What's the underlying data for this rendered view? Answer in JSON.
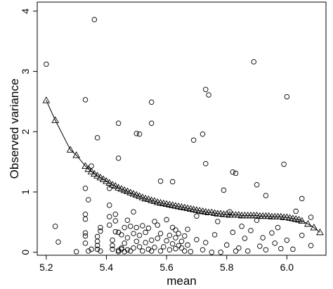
{
  "chart_data": {
    "type": "scatter",
    "title": "",
    "xlabel": "mean",
    "ylabel": "Observed variance",
    "xlim": [
      5.17,
      6.13
    ],
    "ylim": [
      -0.05,
      4.15
    ],
    "xticks": [
      5.2,
      5.4,
      5.6,
      5.8,
      6.0
    ],
    "xtick_labels": [
      "5.2",
      "5.4",
      "5.6",
      "5.8",
      "6.0"
    ],
    "yticks": [
      0,
      1,
      2,
      3,
      4
    ],
    "ytick_labels": [
      "0",
      "1",
      "2",
      "3",
      "4"
    ],
    "grid": false,
    "legend": "none",
    "series": [
      {
        "marker": "circle",
        "x": [
          5.2,
          5.23,
          5.24,
          5.3,
          5.33,
          5.33,
          5.34,
          5.35,
          5.36,
          5.37,
          5.38,
          5.33,
          5.33,
          5.33,
          5.33,
          5.34,
          5.37,
          5.37,
          5.37,
          5.38,
          5.38,
          5.41,
          5.41,
          5.41,
          5.42,
          5.42,
          5.42,
          5.43,
          5.43,
          5.43,
          5.44,
          5.44,
          5.44,
          5.45,
          5.45,
          5.45,
          5.46,
          5.46,
          5.46,
          5.47,
          5.47,
          5.47,
          5.48,
          5.48,
          5.49,
          5.49,
          5.5,
          5.5,
          5.51,
          5.51,
          5.52,
          5.52,
          5.53,
          5.53,
          5.54,
          5.54,
          5.55,
          5.55,
          5.56,
          5.56,
          5.57,
          5.57,
          5.58,
          5.58,
          5.59,
          5.6,
          5.6,
          5.61,
          5.61,
          5.62,
          5.62,
          5.63,
          5.63,
          5.63,
          5.64,
          5.64,
          5.65,
          5.65,
          5.66,
          5.66,
          5.67,
          5.67,
          5.68,
          5.7,
          5.7,
          5.72,
          5.73,
          5.75,
          5.76,
          5.77,
          5.78,
          5.8,
          5.82,
          5.83,
          5.84,
          5.85,
          5.86,
          5.87,
          5.88,
          5.9,
          5.91,
          5.92,
          5.93,
          5.95,
          5.96,
          5.97,
          5.98,
          6.0,
          6.02,
          6.05,
          6.08,
          5.37,
          5.33,
          5.35,
          5.44,
          5.5,
          5.51,
          5.55,
          5.55,
          5.62,
          5.72,
          5.73,
          5.73,
          5.74,
          5.82,
          5.83,
          5.89,
          5.93,
          6.0,
          6.05,
          5.41,
          5.44,
          5.49,
          5.58,
          5.69,
          5.79,
          5.81,
          5.9,
          5.99,
          6.03,
          6.08
        ],
        "y": [
          3.12,
          0.43,
          0.17,
          0.01,
          2.53,
          0.15,
          0.02,
          0.05,
          3.86,
          0.05,
          0.02,
          0.32,
          0.27,
          0.55,
          0.63,
          0.87,
          0.11,
          0.18,
          0.26,
          0.35,
          0.41,
          0.45,
          0.59,
          0.78,
          0.11,
          0.2,
          0.05,
          0.34,
          0.52,
          0.63,
          0.01,
          0.03,
          0.33,
          0.05,
          0.07,
          0.29,
          0.15,
          0.41,
          0.01,
          0.04,
          0.24,
          0.53,
          0.02,
          0.43,
          0.31,
          0.07,
          0.41,
          0.18,
          0.09,
          0.28,
          0.44,
          0.02,
          0.33,
          0.16,
          0.05,
          0.4,
          0.2,
          0.02,
          0.51,
          0.08,
          0.45,
          0.23,
          0.31,
          0.02,
          0.09,
          0.54,
          0.19,
          0.28,
          0.04,
          0.41,
          0.14,
          0.06,
          0.24,
          0.37,
          0.11,
          0.31,
          0.07,
          0.18,
          0.02,
          0.27,
          0.12,
          0.38,
          0.01,
          0.6,
          0.21,
          0.04,
          0.16,
          0.0,
          0.29,
          0.51,
          0.0,
          0.12,
          0.33,
          0.02,
          0.07,
          0.43,
          0.23,
          0.02,
          0.36,
          0.53,
          0.1,
          0.24,
          0.04,
          0.32,
          0.15,
          0.41,
          0.06,
          0.2,
          0.05,
          0.28,
          0.11,
          1.9,
          1.06,
          1.43,
          1.56,
          1.97,
          1.96,
          2.49,
          2.14,
          1.17,
          1.96,
          1.47,
          2.7,
          2.61,
          1.33,
          1.31,
          3.16,
          0.94,
          2.58,
          0.89,
          1.06,
          2.14,
          0.67,
          1.18,
          1.86,
          1.03,
          0.67,
          1.12,
          1.46,
          0.68,
          0.58
        ]
      },
      {
        "marker": "triangle",
        "line": true,
        "x": [
          5.2,
          5.23,
          5.28,
          5.3,
          5.33,
          5.34,
          5.35,
          5.36,
          5.37,
          5.38,
          5.39,
          5.4,
          5.41,
          5.42,
          5.43,
          5.44,
          5.45,
          5.46,
          5.47,
          5.48,
          5.49,
          5.5,
          5.51,
          5.52,
          5.53,
          5.54,
          5.55,
          5.56,
          5.57,
          5.58,
          5.59,
          5.6,
          5.61,
          5.62,
          5.63,
          5.64,
          5.65,
          5.66,
          5.67,
          5.68,
          5.69,
          5.7,
          5.71,
          5.72,
          5.73,
          5.74,
          5.75,
          5.76,
          5.77,
          5.78,
          5.79,
          5.8,
          5.81,
          5.82,
          5.83,
          5.84,
          5.85,
          5.86,
          5.87,
          5.88,
          5.89,
          5.9,
          5.91,
          5.92,
          5.93,
          5.94,
          5.95,
          5.96,
          5.97,
          5.98,
          5.99,
          6.0,
          6.01,
          6.02,
          6.03,
          6.04,
          6.05,
          6.07,
          6.09,
          6.11
        ],
        "y": [
          2.52,
          2.19,
          1.7,
          1.61,
          1.43,
          1.38,
          1.34,
          1.3,
          1.27,
          1.24,
          1.21,
          1.18,
          1.15,
          1.12,
          1.1,
          1.07,
          1.05,
          1.03,
          1.01,
          0.99,
          0.97,
          0.95,
          0.93,
          0.91,
          0.89,
          0.88,
          0.86,
          0.85,
          0.83,
          0.82,
          0.81,
          0.8,
          0.79,
          0.78,
          0.77,
          0.76,
          0.75,
          0.74,
          0.73,
          0.72,
          0.71,
          0.7,
          0.69,
          0.68,
          0.67,
          0.66,
          0.66,
          0.65,
          0.64,
          0.64,
          0.63,
          0.63,
          0.62,
          0.62,
          0.62,
          0.62,
          0.61,
          0.61,
          0.61,
          0.61,
          0.61,
          0.61,
          0.6,
          0.6,
          0.6,
          0.6,
          0.59,
          0.59,
          0.59,
          0.59,
          0.58,
          0.58,
          0.57,
          0.56,
          0.55,
          0.54,
          0.52,
          0.47,
          0.41,
          0.33
        ]
      }
    ]
  }
}
